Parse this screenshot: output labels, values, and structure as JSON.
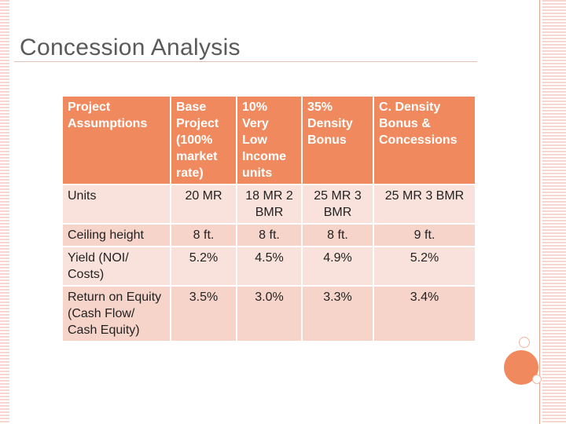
{
  "slide": {
    "title": "Concession Analysis"
  },
  "table": {
    "headers": [
      "Project Assumptions",
      "Base Project (100% market rate)",
      "10% Very Low Income units",
      "35% Density Bonus",
      "C. Density Bonus & Concessions"
    ],
    "rows": [
      {
        "label": "Units",
        "cells": [
          "20 MR",
          "18 MR 2 BMR",
          "25 MR 3 BMR",
          "25 MR 3 BMR"
        ]
      },
      {
        "label": "Ceiling height",
        "cells": [
          "8 ft.",
          "8 ft.",
          "8 ft.",
          "9 ft."
        ]
      },
      {
        "label": "Yield (NOI/ Costs)",
        "cells": [
          "5.2%",
          "4.5%",
          "4.9%",
          "5.2%"
        ]
      },
      {
        "label": "Return on Equity (Cash Flow/ Cash Equity)",
        "cells": [
          "3.5%",
          "3.0%",
          "3.3%",
          "3.4%"
        ]
      }
    ]
  },
  "colors": {
    "header_bg": "#f08a5e",
    "row_light": "#f9e2dc",
    "row_dark": "#f6d4ca",
    "accent": "#f08a5e"
  }
}
